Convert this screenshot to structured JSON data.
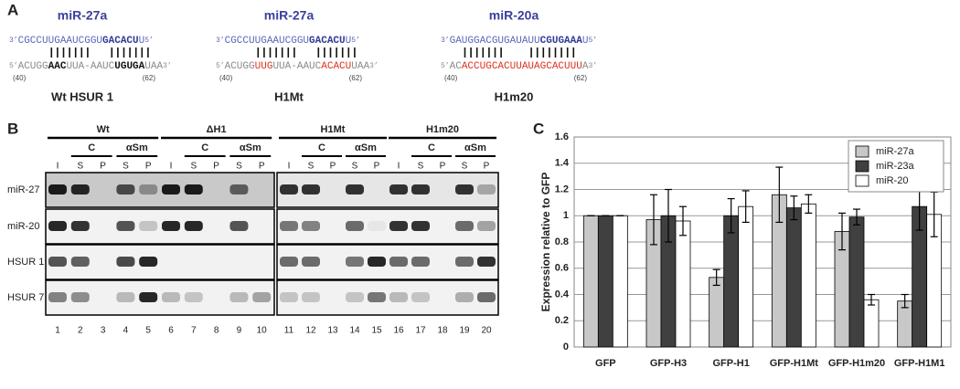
{
  "panel_a": {
    "label": "A",
    "duplexes": [
      {
        "title": "miR-27a",
        "mirna": [
          {
            "text": "3’",
            "style": "prime"
          },
          {
            "text": "CGCCUUGAAUCGGU"
          },
          {
            "text": "GACACU",
            "style": "bold"
          },
          {
            "text": "U"
          },
          {
            "text": "5’",
            "style": "prime"
          }
        ],
        "target": [
          {
            "text": "5’",
            "style": "prime"
          },
          {
            "text": "ACUGG"
          },
          {
            "text": "AAC",
            "style": "bold"
          },
          {
            "text": "UUA-AAUC"
          },
          {
            "text": "UGUGA",
            "style": "bold"
          },
          {
            "text": "UAA"
          },
          {
            "text": "3’",
            "style": "prime"
          }
        ],
        "start": "(40)",
        "end": "(62)",
        "name": "Wt HSUR 1"
      },
      {
        "title": "miR-27a",
        "mirna": [
          {
            "text": "3’",
            "style": "prime"
          },
          {
            "text": "CGCCUUGAAUCGGU"
          },
          {
            "text": "GACACU",
            "style": "bold"
          },
          {
            "text": "U"
          },
          {
            "text": "5’",
            "style": "prime"
          }
        ],
        "target": [
          {
            "text": "5’",
            "style": "prime"
          },
          {
            "text": "ACUGG"
          },
          {
            "text": "UUG",
            "style": "red"
          },
          {
            "text": "UUA-AAUC"
          },
          {
            "text": "ACACU",
            "style": "red"
          },
          {
            "text": "UAA"
          },
          {
            "text": "3’",
            "style": "prime"
          }
        ],
        "start": "(40)",
        "end": "(62)",
        "name": "H1Mt"
      },
      {
        "title": "miR-20a",
        "mirna": [
          {
            "text": "3’",
            "style": "prime"
          },
          {
            "text": "GAUGGACGUGAUAUU"
          },
          {
            "text": "CGUGAAA",
            "style": "bold"
          },
          {
            "text": "U"
          },
          {
            "text": "5’",
            "style": "prime"
          }
        ],
        "target": [
          {
            "text": "5’",
            "style": "prime"
          },
          {
            "text": "AC"
          },
          {
            "text": "ACCUGCACUUAUAGCACUUU",
            "style": "red"
          },
          {
            "text": "A"
          },
          {
            "text": "3’",
            "style": "prime"
          }
        ],
        "start": "(40)",
        "end": "(62)",
        "name": "H1m20"
      }
    ]
  },
  "panel_b": {
    "label": "B",
    "groups": [
      {
        "name": "Wt",
        "sub": [
          "C",
          "αSm"
        ],
        "lanes": [
          "I",
          "S",
          "P",
          "S",
          "P"
        ]
      },
      {
        "name": "ΔH1",
        "sub": [
          "C",
          "αSm"
        ],
        "lanes": [
          "I",
          "S",
          "P",
          "S",
          "P"
        ]
      },
      {
        "name": "H1Mt",
        "sub": [
          "C",
          "αSm"
        ],
        "lanes": [
          "I",
          "S",
          "P",
          "S",
          "P"
        ]
      },
      {
        "name": "H1m20",
        "sub": [
          "C",
          "αSm"
        ],
        "lanes": [
          "I",
          "S",
          "P",
          "S",
          "P"
        ]
      }
    ],
    "rows": [
      "miR-27",
      "miR-20",
      "HSUR 1",
      "HSUR 7"
    ],
    "lane_numbers": [
      1,
      2,
      3,
      4,
      5,
      6,
      7,
      8,
      9,
      10,
      11,
      12,
      13,
      14,
      15,
      16,
      17,
      18,
      19,
      20
    ]
  },
  "chart_data": {
    "type": "bar",
    "panel_label": "C",
    "y_label": "Expression relative to GFP",
    "categories": [
      "GFP",
      "GFP-H3",
      "GFP-H1",
      "GFP-H1Mt",
      "GFP-H1m20",
      "GFP-H1M1"
    ],
    "series": [
      {
        "name": "miR-27a",
        "color": "#c8c8c8",
        "values": [
          1,
          0.97,
          0.53,
          1.16,
          0.88,
          0.35
        ],
        "errors": [
          0,
          0.19,
          0.06,
          0.21,
          0.14,
          0.05
        ]
      },
      {
        "name": "miR-23a",
        "color": "#404040",
        "values": [
          1,
          1.0,
          1.0,
          1.06,
          0.99,
          1.07
        ],
        "errors": [
          0,
          0.2,
          0.13,
          0.09,
          0.06,
          0.18
        ]
      },
      {
        "name": "miR-20",
        "color": "#ffffff",
        "values": [
          1,
          0.96,
          1.07,
          1.09,
          0.36,
          1.01
        ],
        "errors": [
          0,
          0.11,
          0.12,
          0.07,
          0.04,
          0.17
        ]
      }
    ],
    "ylim": [
      0,
      1.6
    ],
    "yticks": [
      0,
      0.2,
      0.4,
      0.6,
      0.8,
      1,
      1.2,
      1.4,
      1.6
    ],
    "grid": true,
    "legend": "upper right"
  }
}
